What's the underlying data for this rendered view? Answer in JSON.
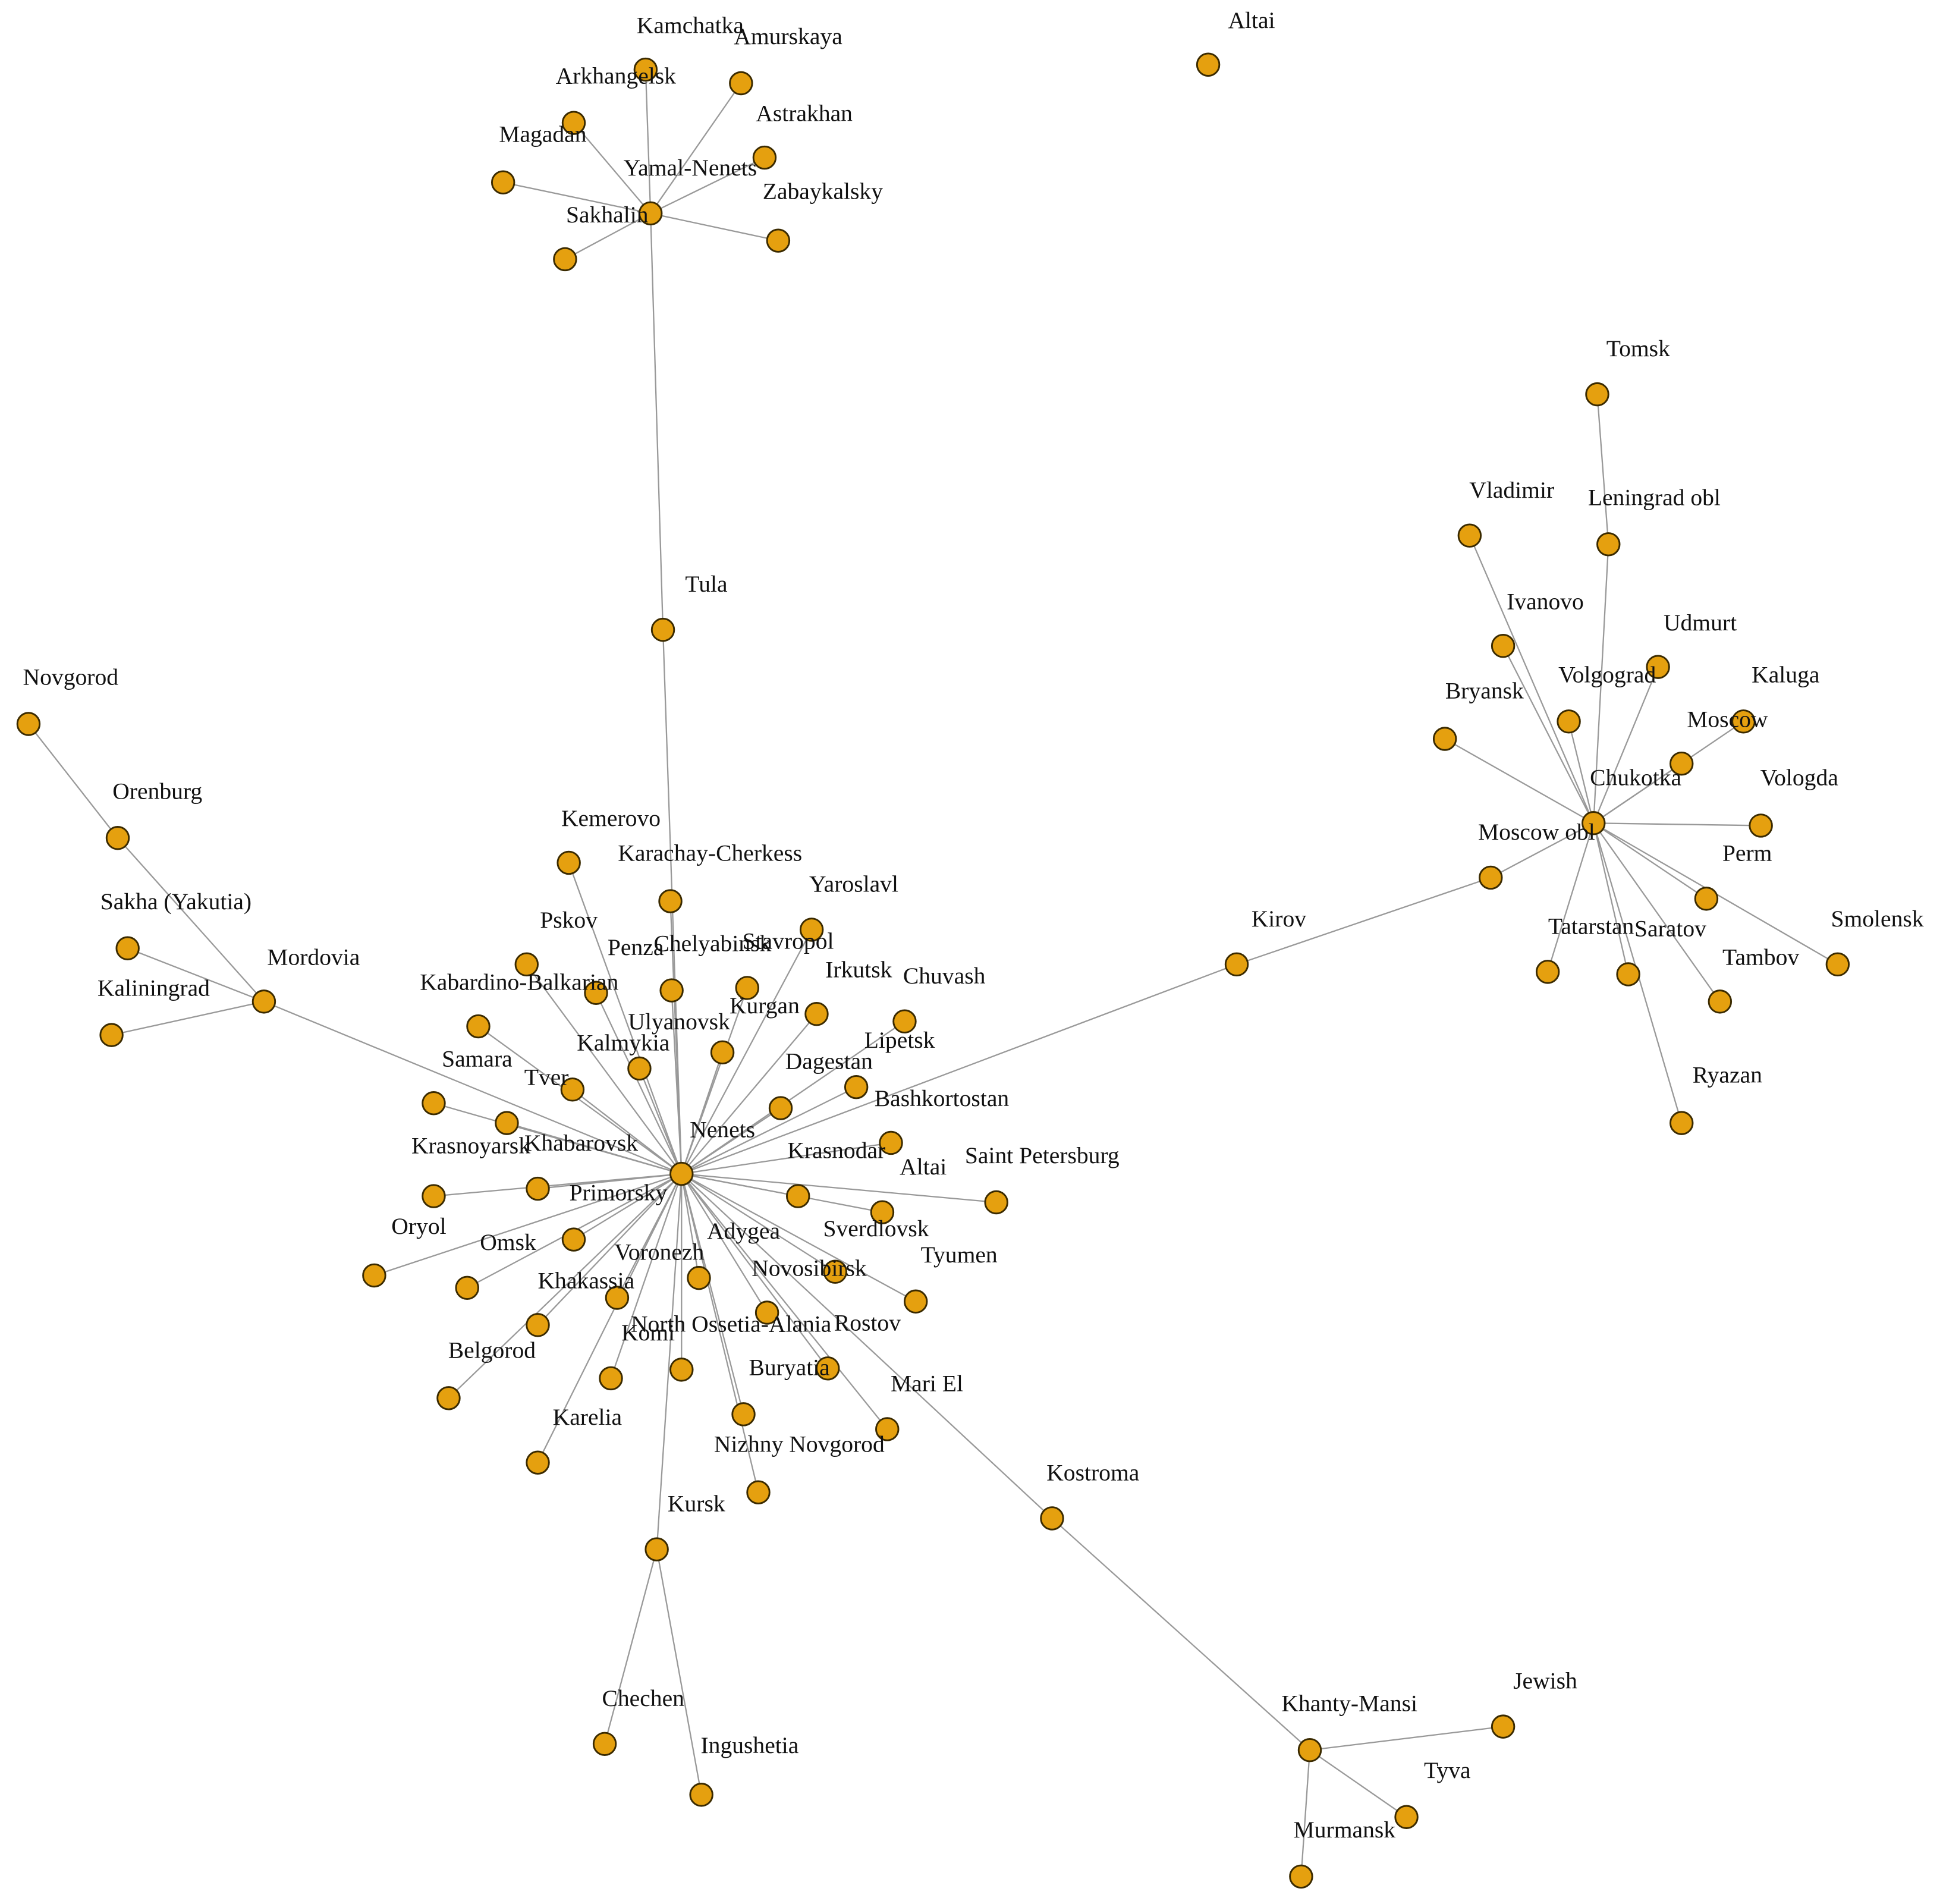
{
  "nodes": [
    {
      "label": "Kamchatka"
    },
    {
      "label": "Amurskaya"
    },
    {
      "label": "Arkhangelsk"
    },
    {
      "label": "Astrakhan"
    },
    {
      "label": "Magadan"
    },
    {
      "label": "Yamal-Nenets"
    },
    {
      "label": "Zabaykalsky"
    },
    {
      "label": "Sakhalin"
    },
    {
      "label": "Altai"
    },
    {
      "label": "Tula"
    },
    {
      "label": "Novgorod"
    },
    {
      "label": "Orenburg"
    },
    {
      "label": "Sakha (Yakutia)"
    },
    {
      "label": "Mordovia"
    },
    {
      "label": "Kaliningrad"
    },
    {
      "label": "Kemerovo"
    },
    {
      "label": "Karachay-Cherkess"
    },
    {
      "label": "Yaroslavl"
    },
    {
      "label": "Pskov"
    },
    {
      "label": "Penza"
    },
    {
      "label": "Chelyabinsk"
    },
    {
      "label": "Stavropol"
    },
    {
      "label": "Irkutsk"
    },
    {
      "label": "Chuvash"
    },
    {
      "label": "Kabardino-Balkarian"
    },
    {
      "label": "Kurgan"
    },
    {
      "label": "Ulyanovsk"
    },
    {
      "label": "Kalmykia"
    },
    {
      "label": "Samara"
    },
    {
      "label": "Tver"
    },
    {
      "label": "Dagestan"
    },
    {
      "label": "Lipetsk"
    },
    {
      "label": "Bashkortostan"
    },
    {
      "label": "Nenets"
    },
    {
      "label": "Krasnoyarsk"
    },
    {
      "label": "Khabarovsk"
    },
    {
      "label": "Krasnodar"
    },
    {
      "label": "Altai"
    },
    {
      "label": "Saint Petersburg"
    },
    {
      "label": "Primorsky"
    },
    {
      "label": "Oryol"
    },
    {
      "label": "Omsk"
    },
    {
      "label": "Adygea"
    },
    {
      "label": "Sverdlovsk"
    },
    {
      "label": "Voronezh"
    },
    {
      "label": "Tyumen"
    },
    {
      "label": "Novosibirsk"
    },
    {
      "label": "Khakassia"
    },
    {
      "label": "North Ossetia-Alania"
    },
    {
      "label": "Komi"
    },
    {
      "label": "Rostov"
    },
    {
      "label": "Belgorod"
    },
    {
      "label": "Buryatia"
    },
    {
      "label": "Mari El"
    },
    {
      "label": "Karelia"
    },
    {
      "label": "Nizhny Novgorod"
    },
    {
      "label": "Kursk"
    },
    {
      "label": "Kostroma"
    },
    {
      "label": "Chechen"
    },
    {
      "label": "Ingushetia"
    },
    {
      "label": "Khanty-Mansi"
    },
    {
      "label": "Jewish"
    },
    {
      "label": "Tyva"
    },
    {
      "label": "Murmansk"
    },
    {
      "label": "Kirov"
    },
    {
      "label": "Tomsk"
    },
    {
      "label": "Vladimir"
    },
    {
      "label": "Leningrad obl"
    },
    {
      "label": "Ivanovo"
    },
    {
      "label": "Udmurt"
    },
    {
      "label": "Volgograd"
    },
    {
      "label": "Kaluga"
    },
    {
      "label": "Bryansk"
    },
    {
      "label": "Moscow"
    },
    {
      "label": "Chukotka"
    },
    {
      "label": "Vologda"
    },
    {
      "label": "Moscow obl"
    },
    {
      "label": "Perm"
    },
    {
      "label": "Smolensk"
    },
    {
      "label": "Tatarstan"
    },
    {
      "label": "Saratov"
    },
    {
      "label": "Tambov"
    },
    {
      "label": "Ryazan"
    }
  ]
}
